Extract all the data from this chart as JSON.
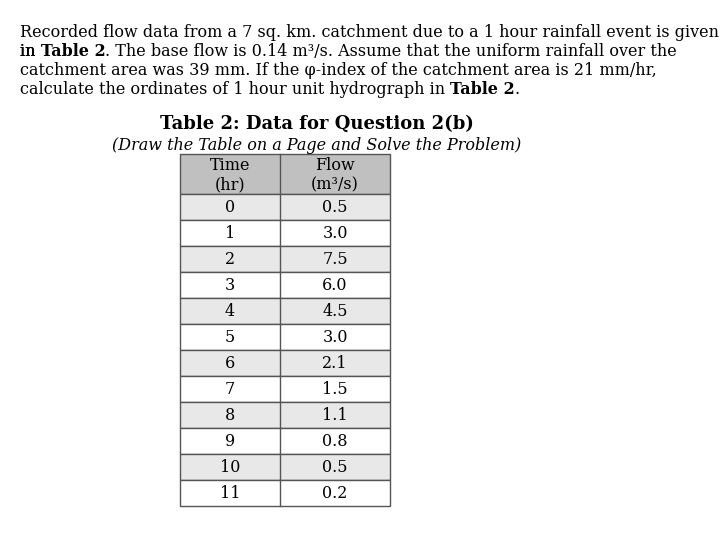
{
  "paragraph": "Recorded flow data from a 7 sq. km. catchment due to a 1 hour rainfall event is given in ΦTable 2Φ. The base flow is 0.14 m³/s. Assume that the uniform rainfall over the catchment area was 39 mm. If the φ-index of the catchment area is 21 mm/hr, calculate the ordinates of 1 hour unit hydrograph in ΦTable 2Φ.",
  "paragraph_lines": [
    "Recorded flow data from a 7 sq. km. catchment due to a 1 hour rainfall event is given",
    "in **Table 2**. The base flow is 0.14 m³/s. Assume that the uniform rainfall over the",
    "catchment area was 39 mm. If the φ-index of the catchment area is 21 mm/hr,",
    "calculate the ordinates of 1 hour unit hydrograph in **Table 2**."
  ],
  "table_title": "Table 2: Data for Question 2(b)",
  "table_subtitle": "(Draw the Table on a Page and Solve the Problem)",
  "col_headers": [
    "Time\n(hr)",
    "Flow\n(m³/s)"
  ],
  "time_values": [
    0,
    1,
    2,
    3,
    4,
    5,
    6,
    7,
    8,
    9,
    10,
    11
  ],
  "flow_values": [
    "0.5",
    "3.0",
    "7.5",
    "6.0",
    "4.5",
    "3.0",
    "2.1",
    "1.5",
    "1.1",
    "0.8",
    "0.5",
    "0.2"
  ],
  "header_bg": "#c0c0c0",
  "row_bg_even": "#e8e8e8",
  "row_bg_odd": "#ffffff",
  "table_border_color": "#555555",
  "font_size_paragraph": 11.5,
  "font_size_table_title": 13,
  "font_size_table_subtitle": 11.5,
  "font_size_table_content": 11.5,
  "bg_color": "#ffffff"
}
